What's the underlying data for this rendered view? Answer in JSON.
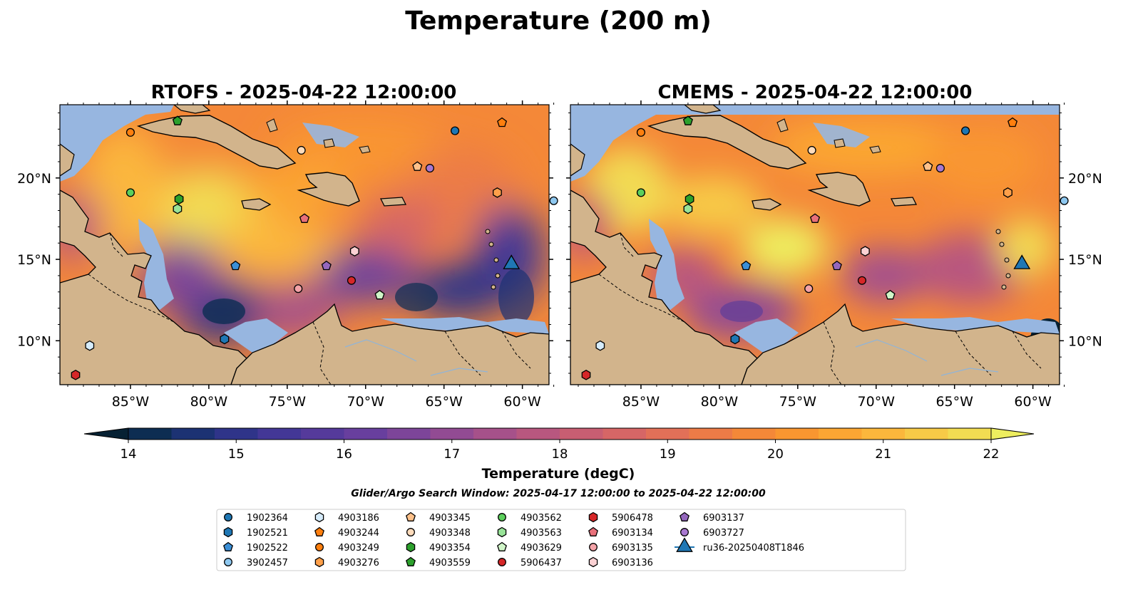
{
  "suptitle": "Temperature (200 m)",
  "panels": [
    {
      "title": "RTOFS - 2025-04-22 12:00:00"
    },
    {
      "title": "CMEMS - 2025-04-22 12:00:00"
    }
  ],
  "x_ticks": [
    "85°W",
    "80°W",
    "75°W",
    "70°W",
    "65°W",
    "60°W"
  ],
  "y_ticks": [
    "20°N",
    "15°N",
    "10°N"
  ],
  "colorbar": {
    "ticks": [
      "14",
      "15",
      "16",
      "17",
      "18",
      "19",
      "20",
      "21",
      "22"
    ],
    "label": "Temperature (degC)",
    "colors": [
      "#062133",
      "#0d2d52",
      "#1c3273",
      "#2f3489",
      "#433796",
      "#553a9b",
      "#683f9e",
      "#7d4599",
      "#924b93",
      "#a6518a",
      "#b8577f",
      "#c85e72",
      "#d66666",
      "#e27058",
      "#ec7b47",
      "#f48838",
      "#f99630",
      "#fba633",
      "#fbb73c",
      "#f7ca47",
      "#f2dc52",
      "#eeee5f"
    ]
  },
  "search_window": "Glider/Argo Search Window: 2025-04-17 12:00:00 to 2025-04-22 12:00:00",
  "legend": [
    {
      "label": "1902364",
      "marker": "circle",
      "color": "#1f77b4"
    },
    {
      "label": "1902521",
      "marker": "hexagon",
      "color": "#1f77b4"
    },
    {
      "label": "1902522",
      "marker": "pentagon",
      "color": "#3b8fd6"
    },
    {
      "label": "3902457",
      "marker": "circle",
      "color": "#8ec8f0"
    },
    {
      "label": "4903186",
      "marker": "hexagon",
      "color": "#d6ecfb"
    },
    {
      "label": "4903244",
      "marker": "pentagon",
      "color": "#ff7f0e"
    },
    {
      "label": "4903249",
      "marker": "circle",
      "color": "#ff7f0e"
    },
    {
      "label": "4903276",
      "marker": "hexagon",
      "color": "#ffa04a"
    },
    {
      "label": "4903345",
      "marker": "pentagon",
      "color": "#ffc18a"
    },
    {
      "label": "4903348",
      "marker": "circle",
      "color": "#ffdcbc"
    },
    {
      "label": "4903354",
      "marker": "hexagon",
      "color": "#2ca02c"
    },
    {
      "label": "4903559",
      "marker": "pentagon",
      "color": "#2ca02c"
    },
    {
      "label": "4903562",
      "marker": "circle",
      "color": "#5ccf5c"
    },
    {
      "label": "4903563",
      "marker": "hexagon",
      "color": "#98e398"
    },
    {
      "label": "4903629",
      "marker": "pentagon",
      "color": "#d0f5c8"
    },
    {
      "label": "5906437",
      "marker": "circle",
      "color": "#d62728"
    },
    {
      "label": "5906478",
      "marker": "hexagon",
      "color": "#d62728"
    },
    {
      "label": "6903134",
      "marker": "pentagon",
      "color": "#e8707a"
    },
    {
      "label": "6903135",
      "marker": "circle",
      "color": "#f4a3a8"
    },
    {
      "label": "6903136",
      "marker": "hexagon",
      "color": "#fbd1d3"
    },
    {
      "label": "6903137",
      "marker": "pentagon",
      "color": "#9467bd"
    },
    {
      "label": "6903727",
      "marker": "circle",
      "color": "#a878d0"
    },
    {
      "label": "ru36-20250408T1846",
      "marker": "triangle",
      "color": "#1f77b4"
    }
  ],
  "floats": [
    {
      "label": "1902364",
      "lon": -64.3,
      "lat": 22.9
    },
    {
      "label": "1902521",
      "lon": -79.0,
      "lat": 10.1
    },
    {
      "label": "1902522",
      "lon": -78.3,
      "lat": 14.6
    },
    {
      "label": "3902457",
      "lon": -58.0,
      "lat": 18.6
    },
    {
      "label": "4903186",
      "lon": -87.6,
      "lat": 9.7
    },
    {
      "label": "4903244",
      "lon": -61.3,
      "lat": 23.4
    },
    {
      "label": "4903249",
      "lon": -85.0,
      "lat": 22.8
    },
    {
      "label": "4903276",
      "lon": -61.6,
      "lat": 19.1
    },
    {
      "label": "4903345",
      "lon": -66.7,
      "lat": 20.7
    },
    {
      "label": "4903348",
      "lon": -74.1,
      "lat": 21.7
    },
    {
      "label": "4903354",
      "lon": -81.9,
      "lat": 18.7
    },
    {
      "label": "4903559",
      "lon": -82.0,
      "lat": 23.5
    },
    {
      "label": "4903562",
      "lon": -85.0,
      "lat": 19.1
    },
    {
      "label": "4903563",
      "lon": -82.0,
      "lat": 18.1
    },
    {
      "label": "4903629",
      "lon": -69.1,
      "lat": 12.8
    },
    {
      "label": "5906437",
      "lon": -70.9,
      "lat": 13.7
    },
    {
      "label": "5906478",
      "lon": -88.5,
      "lat": 7.9
    },
    {
      "label": "6903134",
      "lon": -73.9,
      "lat": 17.5
    },
    {
      "label": "6903135",
      "lon": -74.3,
      "lat": 13.2
    },
    {
      "label": "6903136",
      "lon": -70.7,
      "lat": 15.5
    },
    {
      "label": "6903137",
      "lon": -72.5,
      "lat": 14.6
    },
    {
      "label": "6903727",
      "lon": -65.9,
      "lat": 20.6
    },
    {
      "label": "ru36-20250408T1846",
      "lon": -60.7,
      "lat": 14.7
    }
  ]
}
